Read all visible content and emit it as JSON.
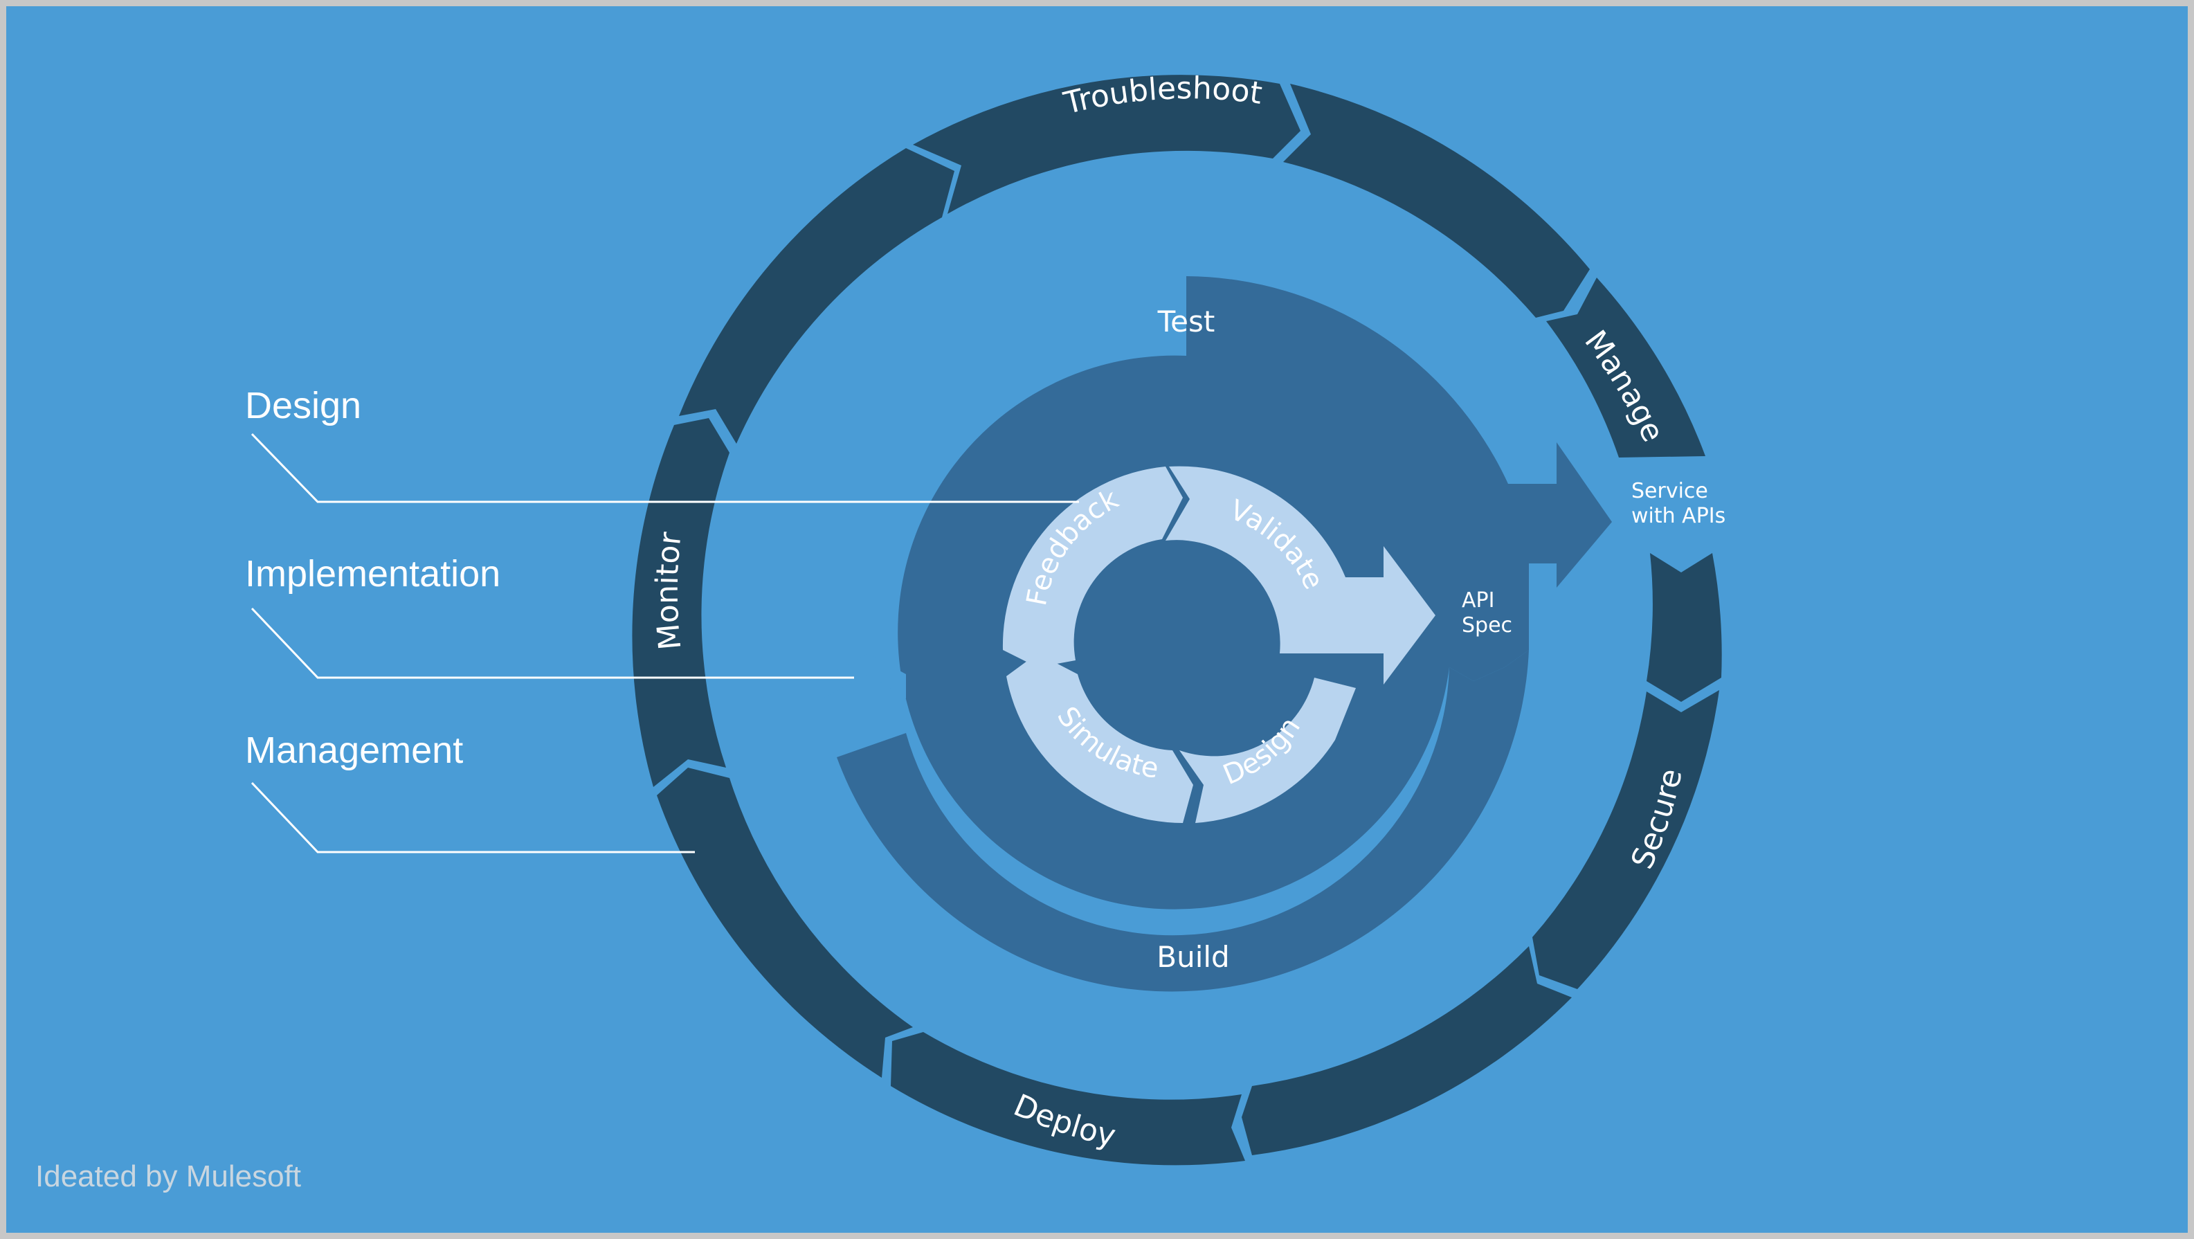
{
  "legend": {
    "design": "Design",
    "implementation": "Implementation",
    "management": "Management"
  },
  "outer_ring": {
    "troubleshoot": "Troubleshoot",
    "manage": "Manage",
    "secure": "Secure",
    "deploy": "Deploy",
    "monitor": "Monitor"
  },
  "middle_ring": {
    "test": "Test",
    "build": "Build"
  },
  "inner_ring": {
    "feedback": "Feedback",
    "validate": "Validate",
    "simulate": "Simulate",
    "design": "Design"
  },
  "outputs": {
    "service_line1": "Service",
    "service_line2": "with APIs",
    "spec_line1": "API",
    "spec_line2": "Spec"
  },
  "credit": "Ideated by Mulesoft",
  "colors": {
    "background": "#4a9cd6",
    "outer_ring": "#224963",
    "middle_ring": "#346b99",
    "inner_ring": "#b8d4ef",
    "line": "#ffffff"
  }
}
